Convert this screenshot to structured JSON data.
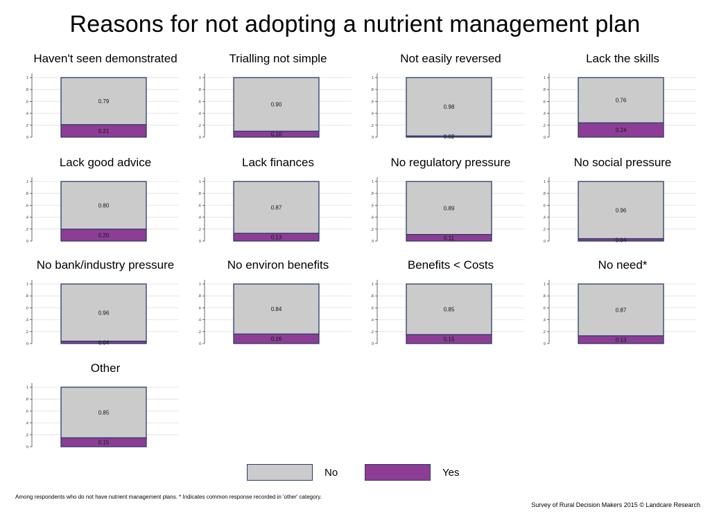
{
  "title": "Reasons for not adopting a nutrient management plan",
  "footnote": "Among respondents who do not have nutrient management plans. * Indicates common response recorded in 'other' category.",
  "credit": "Survey of Rural Decision Makers 2015 © Landcare Research",
  "legend": {
    "no_label": "No",
    "yes_label": "Yes"
  },
  "colors": {
    "no": "#cbcbcb",
    "yes": "#8e3d96",
    "border": "#2b3a67",
    "grid": "#e4e4e4"
  },
  "chart_data": {
    "type": "bar",
    "stacked": true,
    "ylim": [
      0,
      1
    ],
    "y_ticks": [
      "0",
      ".2",
      ".4",
      ".6",
      ".8",
      "1"
    ],
    "series_names": [
      "No",
      "Yes"
    ],
    "panels": [
      {
        "title": "Haven't seen demonstrated",
        "no": 0.79,
        "yes": 0.21,
        "no_label": "0.79",
        "yes_label": "0.21"
      },
      {
        "title": "Trialling not simple",
        "no": 0.9,
        "yes": 0.1,
        "no_label": "0.90",
        "yes_label": "0.10"
      },
      {
        "title": "Not easily reversed",
        "no": 0.98,
        "yes": 0.02,
        "no_label": "0.98",
        "yes_label": "0.02"
      },
      {
        "title": "Lack the skills",
        "no": 0.76,
        "yes": 0.24,
        "no_label": "0.76",
        "yes_label": "0.24"
      },
      {
        "title": "Lack good advice",
        "no": 0.8,
        "yes": 0.2,
        "no_label": "0.80",
        "yes_label": "0.20"
      },
      {
        "title": "Lack finances",
        "no": 0.87,
        "yes": 0.13,
        "no_label": "0.87",
        "yes_label": "0.13"
      },
      {
        "title": "No regulatory pressure",
        "no": 0.89,
        "yes": 0.11,
        "no_label": "0.89",
        "yes_label": "0.11"
      },
      {
        "title": "No social pressure",
        "no": 0.96,
        "yes": 0.04,
        "no_label": "0.96",
        "yes_label": "0.04"
      },
      {
        "title": "No bank/industry pressure",
        "no": 0.96,
        "yes": 0.04,
        "no_label": "0.96",
        "yes_label": "0.04"
      },
      {
        "title": "No environ benefits",
        "no": 0.84,
        "yes": 0.16,
        "no_label": "0.84",
        "yes_label": "0.16"
      },
      {
        "title": "Benefits < Costs",
        "no": 0.85,
        "yes": 0.15,
        "no_label": "0.85",
        "yes_label": "0.15"
      },
      {
        "title": "No need*",
        "no": 0.87,
        "yes": 0.13,
        "no_label": "0.87",
        "yes_label": "0.13"
      },
      {
        "title": "Other",
        "no": 0.85,
        "yes": 0.15,
        "no_label": "0.85",
        "yes_label": "0.15"
      }
    ]
  }
}
